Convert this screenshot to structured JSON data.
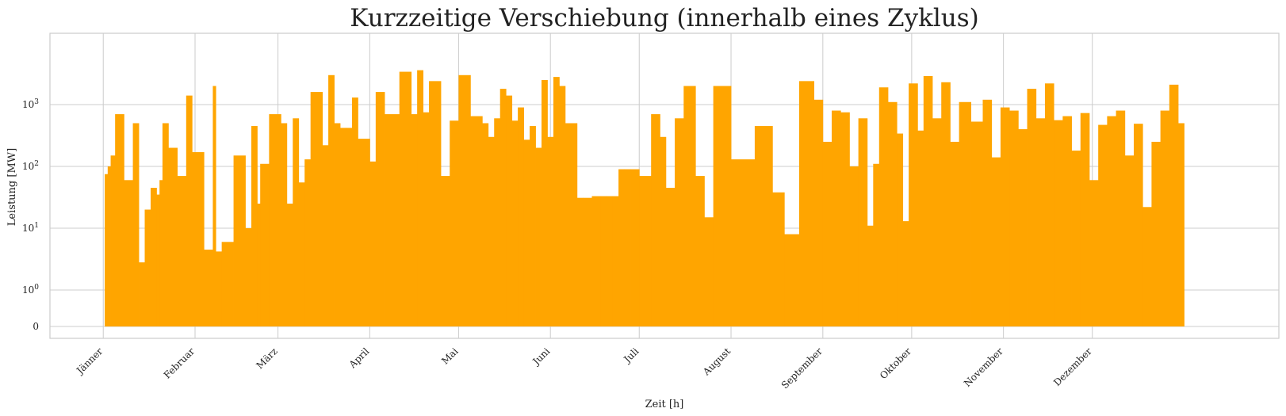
{
  "chart_data": {
    "type": "area",
    "title": "Kurzzeitige Verschiebung (innerhalb eines Zyklus)",
    "xlabel": "Zeit [h]",
    "ylabel": "Leistung [MW]",
    "y_scale": "symlog",
    "grid": true,
    "color": "#FFA500",
    "x_months": [
      "Jänner",
      "Februar",
      "März",
      "April",
      "Mai",
      "Juni",
      "Juli",
      "August",
      "September",
      "Oktober",
      "November",
      "Dezember"
    ],
    "y_ticks": [
      {
        "value": 0,
        "base": "0",
        "exp": ""
      },
      {
        "value": 1,
        "base": "10",
        "exp": "0"
      },
      {
        "value": 10,
        "base": "10",
        "exp": "1"
      },
      {
        "value": 100,
        "base": "10",
        "exp": "2"
      },
      {
        "value": 1000,
        "base": "10",
        "exp": "3"
      }
    ],
    "ylim": [
      0,
      6000
    ],
    "xlim_days": [
      -18,
      397
    ],
    "series": [
      {
        "x_days": [
          0.5,
          1.5,
          2.5,
          4,
          7,
          10,
          12,
          14,
          16,
          18,
          19,
          20,
          22,
          25,
          28,
          30,
          34,
          37,
          38,
          40,
          44,
          48,
          50,
          52,
          53,
          56,
          60,
          62,
          64,
          66,
          68,
          70,
          74,
          76,
          78,
          80,
          82,
          84,
          86,
          90,
          92,
          95,
          100,
          104,
          106,
          108,
          110,
          114,
          117,
          120,
          124,
          128,
          130,
          132,
          134,
          136,
          138,
          140,
          142,
          144,
          146,
          148,
          150,
          152,
          154,
          156,
          160,
          162,
          165,
          168,
          170,
          172,
          174,
          176,
          178,
          181,
          185,
          188,
          190,
          193,
          196,
          200,
          203,
          206,
          212,
          220,
          226,
          230,
          235,
          240,
          243,
          246,
          249,
          252,
          255,
          258,
          260,
          262,
          265,
          268,
          270,
          272,
          275,
          277,
          280,
          283,
          286,
          289,
          293,
          297,
          300,
          303,
          306,
          309,
          312,
          315,
          318,
          321,
          324,
          327,
          330,
          333,
          336,
          339,
          342,
          345,
          348,
          351,
          354,
          357,
          360,
          363
        ],
        "y": [
          75,
          100,
          150,
          700,
          60,
          500,
          2.8,
          20,
          45,
          35,
          60,
          500,
          200,
          70,
          1400,
          170,
          4.5,
          2000,
          4.2,
          6,
          150,
          10,
          450,
          25,
          110,
          700,
          500,
          25,
          600,
          55,
          130,
          1600,
          220,
          3000,
          500,
          420,
          420,
          1300,
          280,
          120,
          1600,
          700,
          3400,
          700,
          3600,
          750,
          2400,
          70,
          550,
          3000,
          650,
          500,
          300,
          600,
          1800,
          1400,
          550,
          900,
          270,
          450,
          200,
          2500,
          300,
          2800,
          2000,
          500,
          31,
          31,
          33,
          33,
          33,
          33,
          90,
          90,
          90,
          70,
          700,
          300,
          45,
          600,
          2000,
          70,
          15,
          2000,
          130,
          450,
          38,
          8,
          2400,
          1200,
          250,
          800,
          750,
          100,
          600,
          11,
          110,
          1900,
          1100,
          340,
          13,
          2200,
          380,
          2900,
          600,
          2300,
          250,
          1100,
          530,
          1200,
          140,
          900,
          800,
          400,
          1800,
          600,
          2200,
          560,
          650,
          180,
          730,
          60,
          470,
          650,
          800,
          150,
          490,
          22,
          250,
          800,
          2100,
          500
        ]
      }
    ]
  }
}
